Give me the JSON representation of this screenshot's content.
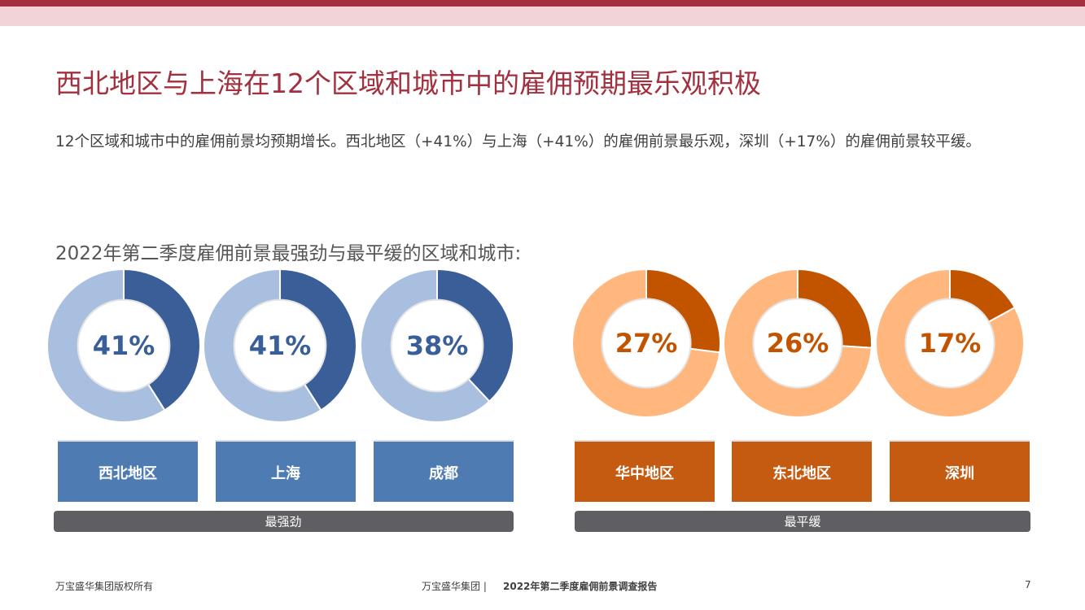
{
  "title": "西北地区与上海在12个区域和城市中的雇佣预期最乐观积极",
  "summary": "12个区域和城市中的雇佣前景均预期增长。西北地区（+41%）与上海（+41%）的雇佣前景最乐观，深圳（+17%）的雇佣前景较平缓。",
  "subtitle": "2022年第二季度雇佣前景最强劲与最平缓的区域和城市:",
  "groups": [
    "最强劲",
    "最平缓"
  ],
  "chart_data": [
    {
      "type": "pie",
      "label": "西北地区",
      "values": [
        41,
        59
      ],
      "value_labels": [
        "41%",
        null
      ],
      "colors": [
        "#3a5f98",
        "#a9bfe0"
      ],
      "box_color": "#4f7bb3"
    },
    {
      "type": "pie",
      "label": "上海",
      "values": [
        41,
        59
      ],
      "value_labels": [
        "41%",
        null
      ],
      "colors": [
        "#3a5f98",
        "#a9bfe0"
      ],
      "box_color": "#4f7bb3"
    },
    {
      "type": "pie",
      "label": "成都",
      "values": [
        38,
        62
      ],
      "value_labels": [
        "38%",
        null
      ],
      "colors": [
        "#3a5f98",
        "#a9bfe0"
      ],
      "box_color": "#4f7bb3"
    },
    {
      "type": "pie",
      "label": "华中地区",
      "values": [
        27,
        73
      ],
      "value_labels": [
        "27%",
        null
      ],
      "colors": [
        "#c25400",
        "#ffb77e"
      ],
      "box_color": "#c55a11"
    },
    {
      "type": "pie",
      "label": "东北地区",
      "values": [
        26,
        74
      ],
      "value_labels": [
        "26%",
        null
      ],
      "colors": [
        "#c25400",
        "#ffb77e"
      ],
      "box_color": "#c55a11"
    },
    {
      "type": "pie",
      "label": "深圳",
      "values": [
        17,
        83
      ],
      "value_labels": [
        "17%",
        null
      ],
      "colors": [
        "#c25400",
        "#ffb77e"
      ],
      "box_color": "#c55a11"
    }
  ],
  "footer": {
    "left": "万宝盛华集团版权所有",
    "brand": "万宝盛华集团 |",
    "report": "2022年第二季度雇佣前景调查报告",
    "page": "7"
  }
}
